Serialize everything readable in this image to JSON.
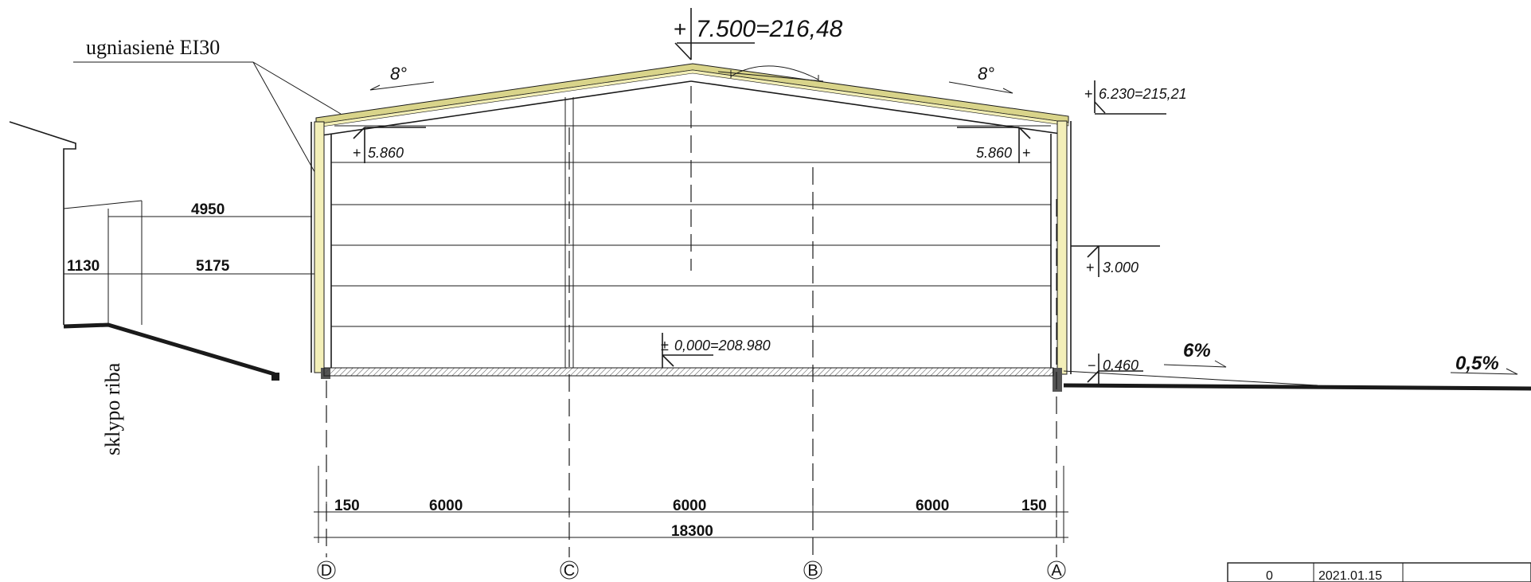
{
  "labels": {
    "firewall": "ugniasienė EI30",
    "plot_boundary": "sklypo riba"
  },
  "levels": {
    "ridge": "7.500=216,48",
    "ridge_sign": "+",
    "eave": "6.230=215,21",
    "eave_sign": "+",
    "inner_left": "5.860",
    "inner_left_sign": "+",
    "inner_right": "5.860",
    "inner_right_sign": "+",
    "door": "3.000",
    "door_sign": "+",
    "floor": "0,000=208.980",
    "floor_sign": "±",
    "ground": "0.460",
    "ground_sign": "−"
  },
  "slopes": {
    "roof_left": "8°",
    "roof_right": "8°",
    "ground_near": "6%",
    "ground_far": "0,5%"
  },
  "dimensions": {
    "neighbor_offset_upper": "4950",
    "neighbor_width": "1130",
    "neighbor_offset_lower": "5175",
    "bay_edge_left": "150",
    "bay_1": "6000",
    "bay_2": "6000",
    "bay_3": "6000",
    "bay_edge_right": "150",
    "overall": "18300"
  },
  "axes": [
    "D",
    "C",
    "B",
    "A"
  ],
  "title_block": {
    "revision": "0",
    "date": "2021.01.15"
  },
  "colors": {
    "line": "#1a1a1a",
    "insulation": "#f3efb8",
    "roof_panel": "#d9d48a"
  }
}
